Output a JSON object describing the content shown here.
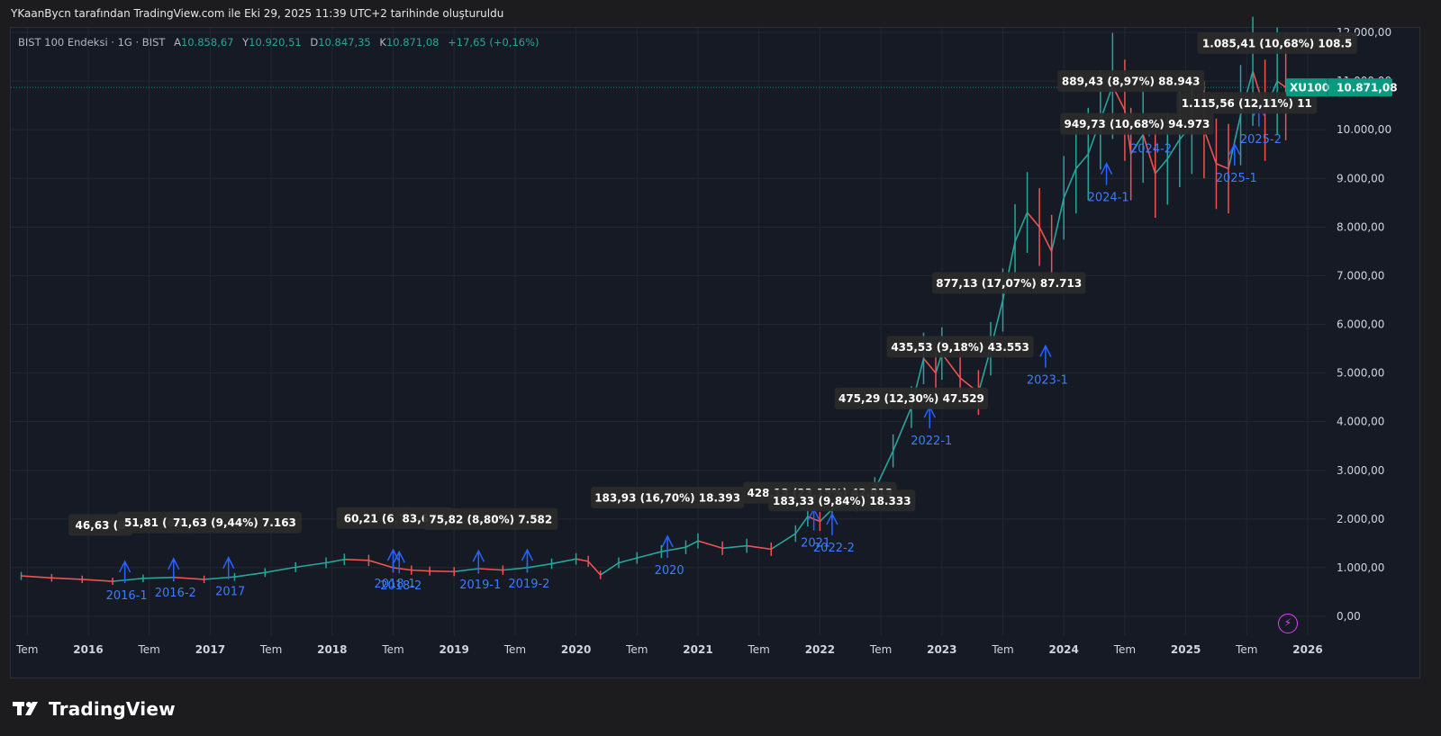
{
  "header": {
    "title": "YKaanBycn tarafından TradingView.com ile Eki 29, 2025 11:39 UTC+2 tarihinde oluşturuldu"
  },
  "legend": {
    "symbol": "BIST 100 Endeksi · 1G · BIST",
    "open_label": "A",
    "open": "10.858,67",
    "high_label": "Y",
    "high": "10.920,51",
    "low_label": "D",
    "low": "10.847,35",
    "close_label": "K",
    "close": "10.871,08",
    "change": "+17,65 (+0,16%)"
  },
  "price_tag": {
    "ticker": "XU100",
    "value": "10.871,08"
  },
  "footer": {
    "brand": "TradingView"
  },
  "colors": {
    "background": "#161a25",
    "grid": "#222733",
    "up": "#26a69a",
    "down": "#ef5350",
    "annotation": "#2962ff",
    "label_bg": "#2a2a2a",
    "price_tag": "#089981"
  },
  "chart_data": {
    "type": "line",
    "title": "",
    "xlabel": "",
    "ylabel": "",
    "ylim": [
      -200,
      12000
    ],
    "grid": true,
    "y_ticks": [
      {
        "value": 0,
        "label": "0,00"
      },
      {
        "value": 1000,
        "label": "1.000,00"
      },
      {
        "value": 2000,
        "label": "2.000,00"
      },
      {
        "value": 3000,
        "label": "3.000,00"
      },
      {
        "value": 4000,
        "label": "4.000,00"
      },
      {
        "value": 5000,
        "label": "5.000,00"
      },
      {
        "value": 6000,
        "label": "6.000,00"
      },
      {
        "value": 7000,
        "label": "7.000,00"
      },
      {
        "value": 8000,
        "label": "8.000,00"
      },
      {
        "value": 9000,
        "label": "9.000,00"
      },
      {
        "value": 10000,
        "label": "10.000,00"
      },
      {
        "value": 11000,
        "label": "11.000,00"
      },
      {
        "value": 12000,
        "label": "12.000,00"
      }
    ],
    "x_ticks": [
      {
        "t": 2015.5,
        "label": "Tem"
      },
      {
        "t": 2016.0,
        "label": "2016"
      },
      {
        "t": 2016.5,
        "label": "Tem"
      },
      {
        "t": 2017.0,
        "label": "2017"
      },
      {
        "t": 2017.5,
        "label": "Tem"
      },
      {
        "t": 2018.0,
        "label": "2018"
      },
      {
        "t": 2018.5,
        "label": "Tem"
      },
      {
        "t": 2019.0,
        "label": "2019"
      },
      {
        "t": 2019.5,
        "label": "Tem"
      },
      {
        "t": 2020.0,
        "label": "2020"
      },
      {
        "t": 2020.5,
        "label": "Tem"
      },
      {
        "t": 2021.0,
        "label": "2021"
      },
      {
        "t": 2021.5,
        "label": "Tem"
      },
      {
        "t": 2022.0,
        "label": "2022"
      },
      {
        "t": 2022.5,
        "label": "Tem"
      },
      {
        "t": 2023.0,
        "label": "2023"
      },
      {
        "t": 2023.5,
        "label": "Tem"
      },
      {
        "t": 2024.0,
        "label": "2024"
      },
      {
        "t": 2024.5,
        "label": "Tem"
      },
      {
        "t": 2025.0,
        "label": "2025"
      },
      {
        "t": 2025.5,
        "label": "Tem"
      },
      {
        "t": 2026.0,
        "label": "2026"
      }
    ],
    "series": [
      {
        "x": [
          2015.45,
          2015.7,
          2015.95,
          2016.2,
          2016.45,
          2016.7,
          2016.95,
          2017.2,
          2017.45,
          2017.7,
          2017.95,
          2018.1,
          2018.3,
          2018.5,
          2018.65,
          2018.8,
          2019.0,
          2019.2,
          2019.4,
          2019.6,
          2019.8,
          2020.0,
          2020.1,
          2020.2,
          2020.35,
          2020.5,
          2020.7,
          2020.9,
          2021.0,
          2021.2,
          2021.4,
          2021.6,
          2021.8,
          2021.9,
          2022.0,
          2022.1,
          2022.3,
          2022.45,
          2022.6,
          2022.75,
          2022.85,
          2022.95,
          2023.0,
          2023.15,
          2023.3,
          2023.4,
          2023.5,
          2023.6,
          2023.7,
          2023.8,
          2023.9,
          2024.0,
          2024.1,
          2024.2,
          2024.3,
          2024.4,
          2024.5,
          2024.55,
          2024.65,
          2024.75,
          2024.85,
          2024.95,
          2025.05,
          2025.15,
          2025.25,
          2025.35,
          2025.45,
          2025.55,
          2025.65,
          2025.75,
          2025.82
        ],
        "values": [
          830,
          790,
          760,
          720,
          780,
          800,
          760,
          810,
          900,
          1010,
          1100,
          1170,
          1150,
          1000,
          950,
          930,
          920,
          980,
          950,
          1000,
          1080,
          1180,
          1130,
          850,
          1100,
          1200,
          1330,
          1420,
          1550,
          1400,
          1450,
          1380,
          1700,
          2050,
          1950,
          2200,
          2400,
          2600,
          3400,
          4300,
          5300,
          5000,
          5400,
          4900,
          4600,
          5500,
          6500,
          7700,
          8300,
          8000,
          7500,
          8600,
          9200,
          9500,
          10200,
          10900,
          10400,
          9500,
          9900,
          9100,
          9400,
          9800,
          10100,
          10000,
          9300,
          9200,
          10300,
          11200,
          10400,
          11000,
          10870
        ]
      }
    ],
    "annotations": [
      {
        "label": "2016-1",
        "t": 2016.3,
        "v": 720
      },
      {
        "label": "2016-2",
        "t": 2016.7,
        "v": 780
      },
      {
        "label": "2017",
        "t": 2017.15,
        "v": 800
      },
      {
        "label": "2018-1",
        "t": 2018.5,
        "v": 960
      },
      {
        "label": "2018-2",
        "t": 2018.55,
        "v": 920
      },
      {
        "label": "2019-1",
        "t": 2019.2,
        "v": 940
      },
      {
        "label": "2019-2",
        "t": 2019.6,
        "v": 960
      },
      {
        "label": "2020",
        "t": 2020.75,
        "v": 1240
      },
      {
        "label": "2021",
        "t": 2021.95,
        "v": 1800
      },
      {
        "label": "2022-2",
        "t": 2022.1,
        "v": 1700
      },
      {
        "label": "2022-1",
        "t": 2022.9,
        "v": 3900
      },
      {
        "label": "2023-1",
        "t": 2023.85,
        "v": 5150
      },
      {
        "label": "2024-1",
        "t": 2024.35,
        "v": 8900
      },
      {
        "label": "2024-2",
        "t": 2024.7,
        "v": 9900
      },
      {
        "label": "2025-1",
        "t": 2025.4,
        "v": 9300
      },
      {
        "label": "2025-2",
        "t": 2025.6,
        "v": 10100
      }
    ],
    "measure_labels": [
      {
        "text": "46,63 (6",
        "t": 2016.1,
        "v": 1880
      },
      {
        "text": "51,81 (6,6",
        "t": 2016.55,
        "v": 1930
      },
      {
        "text": "71,63 (9,44%) 7.163",
        "t": 2017.2,
        "v": 1930
      },
      {
        "text": "60,21 (6,7",
        "t": 2018.35,
        "v": 2020
      },
      {
        "text": "83,63 (",
        "t": 2018.75,
        "v": 2020
      },
      {
        "text": "75,82 (8,80%) 7.582",
        "t": 2019.3,
        "v": 2000
      },
      {
        "text": "183,93 (16,70%) 18.393",
        "t": 2020.75,
        "v": 2440
      },
      {
        "text": "428,13 (23,15%) 42.813",
        "t": 2022.0,
        "v": 2540
      },
      {
        "text": "183,33 (9,84%) 18.333",
        "t": 2022.18,
        "v": 2380
      },
      {
        "text": "475,29 (12,30%) 47.529",
        "t": 2022.75,
        "v": 4480
      },
      {
        "text": "435,53 (9,18%) 43.553",
        "t": 2023.15,
        "v": 5540
      },
      {
        "text": "877,13 (17,07%) 87.713",
        "t": 2023.55,
        "v": 6850
      },
      {
        "text": "949,73 (10,68%) 94.973",
        "t": 2024.6,
        "v": 10120
      },
      {
        "text": "889,43 (8,97%) 88.943",
        "t": 2024.55,
        "v": 11000
      },
      {
        "text": "1.115,56 (12,11%) 11",
        "t": 2025.5,
        "v": 10550
      },
      {
        "text": "1.085,41 (10,68%) 108.5",
        "t": 2025.75,
        "v": 11780
      }
    ]
  }
}
